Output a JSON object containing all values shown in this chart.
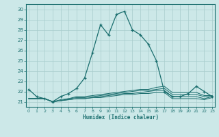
{
  "xlabel": "Humidex (Indice chaleur)",
  "xlim": [
    -0.3,
    23.3
  ],
  "ylim": [
    20.5,
    30.5
  ],
  "yticks": [
    21,
    22,
    23,
    24,
    25,
    26,
    27,
    28,
    29,
    30
  ],
  "xticks": [
    0,
    1,
    2,
    3,
    4,
    5,
    6,
    7,
    8,
    9,
    10,
    11,
    12,
    13,
    14,
    15,
    16,
    17,
    18,
    19,
    20,
    21,
    22,
    23
  ],
  "bg_color": "#cce8e8",
  "grid_color": "#a8cccc",
  "line_color": "#1a6e6e",
  "main_line": [
    22.2,
    21.5,
    21.3,
    21.0,
    21.5,
    21.8,
    22.3,
    23.3,
    25.8,
    28.5,
    27.5,
    29.5,
    29.8,
    28.0,
    27.5,
    26.6,
    25.0,
    22.0,
    21.5,
    21.5,
    21.8,
    22.5,
    22.0,
    21.5
  ],
  "flat1": [
    21.3,
    21.3,
    21.3,
    21.0,
    21.1,
    21.2,
    21.3,
    21.3,
    21.4,
    21.4,
    21.5,
    21.6,
    21.7,
    21.7,
    21.8,
    21.8,
    21.9,
    21.9,
    21.3,
    21.3,
    21.3,
    21.3,
    21.2,
    21.4
  ],
  "flat2": [
    21.3,
    21.3,
    21.3,
    21.0,
    21.1,
    21.2,
    21.3,
    21.3,
    21.4,
    21.5,
    21.6,
    21.7,
    21.8,
    21.8,
    21.9,
    22.0,
    22.1,
    22.1,
    21.5,
    21.5,
    21.5,
    21.5,
    21.3,
    21.5
  ],
  "flat3": [
    21.3,
    21.3,
    21.3,
    21.0,
    21.1,
    21.3,
    21.4,
    21.4,
    21.5,
    21.6,
    21.7,
    21.8,
    21.9,
    22.0,
    22.1,
    22.1,
    22.2,
    22.3,
    21.7,
    21.7,
    21.7,
    21.7,
    21.5,
    21.5
  ],
  "flat4": [
    21.3,
    21.3,
    21.3,
    21.0,
    21.2,
    21.3,
    21.5,
    21.5,
    21.6,
    21.7,
    21.8,
    21.9,
    22.0,
    22.1,
    22.2,
    22.2,
    22.4,
    22.5,
    21.9,
    21.9,
    21.9,
    21.9,
    21.6,
    21.6
  ]
}
